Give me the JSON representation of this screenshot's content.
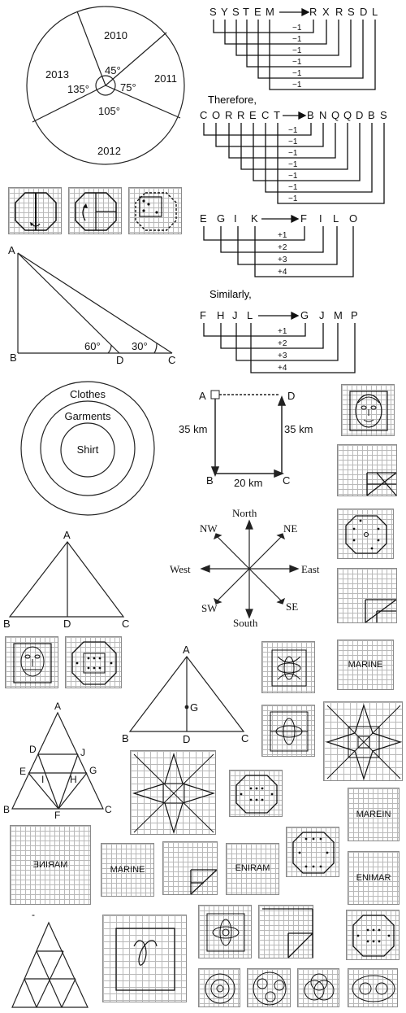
{
  "pie": {
    "years": [
      "2010",
      "2011",
      "2012",
      "2013"
    ],
    "angles": [
      "45°",
      "75°",
      "105°",
      "135°"
    ]
  },
  "code1": {
    "source": [
      "S",
      "Y",
      "S",
      "T",
      "E",
      "M"
    ],
    "target": [
      "R",
      "X",
      "R",
      "S",
      "D",
      "L"
    ],
    "shift": "−1"
  },
  "therefore_label": "Therefore,",
  "code2": {
    "source": [
      "C",
      "O",
      "R",
      "R",
      "E",
      "C",
      "T"
    ],
    "target": [
      "B",
      "N",
      "Q",
      "Q",
      "D",
      "B",
      "S"
    ],
    "shift": "−1"
  },
  "code3": {
    "source": [
      "E",
      "G",
      "I",
      "K"
    ],
    "target": [
      "F",
      "I",
      "L",
      "O"
    ],
    "shifts": [
      "+1",
      "+2",
      "+3",
      "+4"
    ]
  },
  "similarly_label": "Similarly,",
  "code4": {
    "source": [
      "F",
      "H",
      "J",
      "L"
    ],
    "target": [
      "G",
      "J",
      "M",
      "P"
    ],
    "shifts": [
      "+1",
      "+2",
      "+3",
      "+4"
    ]
  },
  "tower": {
    "points": [
      "A",
      "B",
      "D",
      "C"
    ],
    "angles": [
      "60°",
      "30°"
    ]
  },
  "venn": [
    "Clothes",
    "Garments",
    "Shirt"
  ],
  "route": {
    "points": [
      "A",
      "D",
      "B",
      "C"
    ],
    "distances": [
      "35 km",
      "35 km",
      "20 km"
    ]
  },
  "compass": {
    "directions": [
      "North",
      "NE",
      "East",
      "SE",
      "South",
      "SW",
      "West",
      "NW"
    ]
  },
  "triangle_median": {
    "points": [
      "A",
      "B",
      "D",
      "C"
    ]
  },
  "triangle_centroid": {
    "points": [
      "A",
      "G",
      "B",
      "D",
      "C"
    ]
  },
  "triangle_count": {
    "points": [
      "A",
      "D",
      "J",
      "E",
      "G",
      "I",
      "H",
      "B",
      "F",
      "C"
    ]
  },
  "words": {
    "marine": "MARINE",
    "marein": "MAREIN",
    "eniram": "ENIRAM",
    "enimar": "ENIMAR",
    "mirrored": "MARINE"
  },
  "small_mark": "-"
}
